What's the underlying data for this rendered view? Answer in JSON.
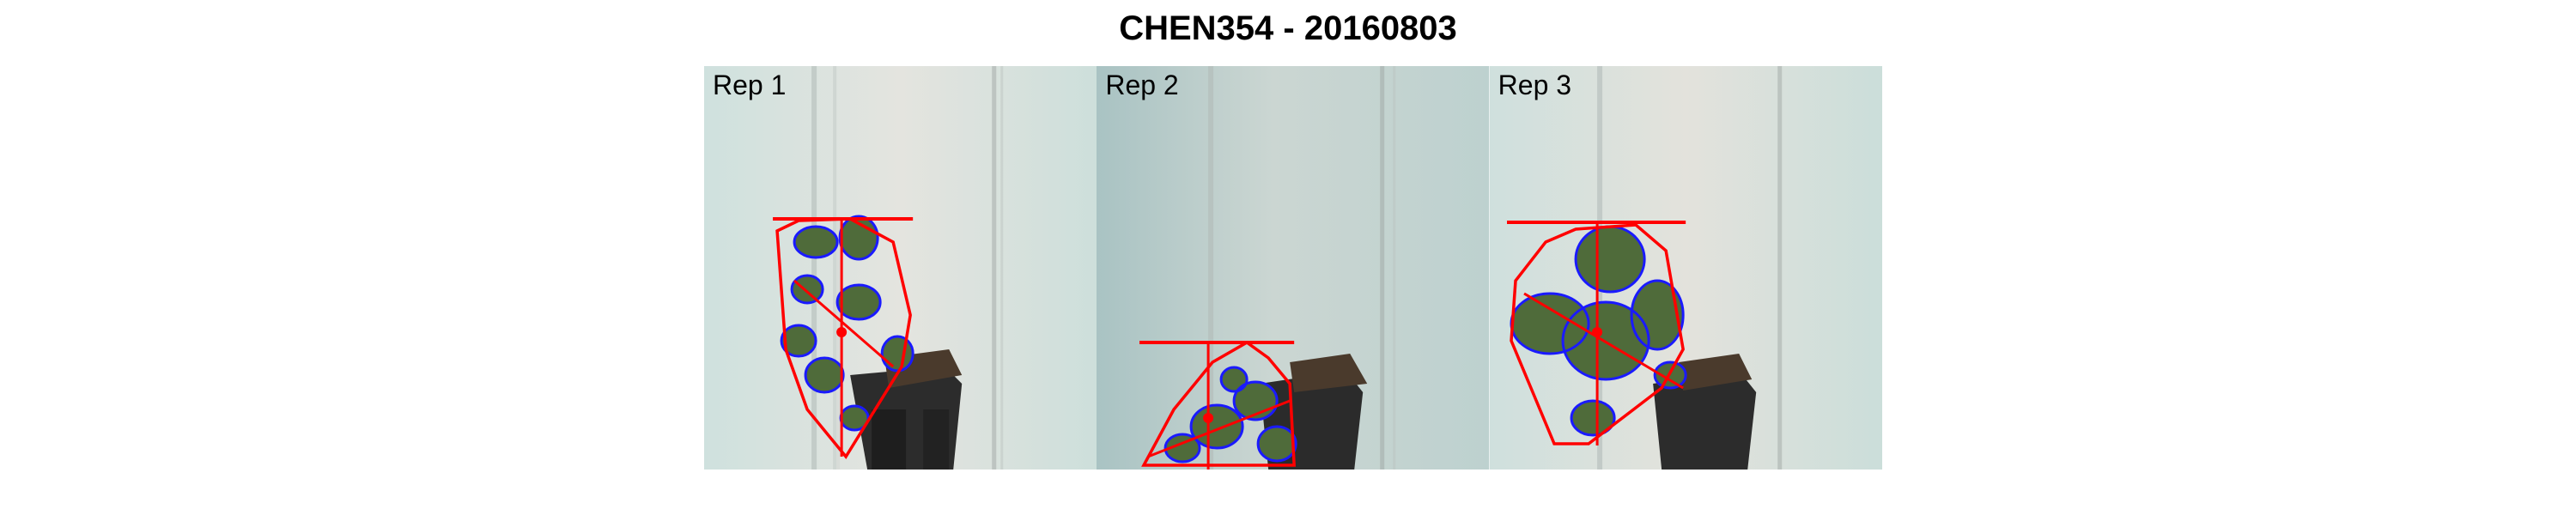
{
  "title": "CHEN354 - 20160803",
  "panels": [
    {
      "label": "Rep 1"
    },
    {
      "label": "Rep 2"
    },
    {
      "label": "Rep 3"
    }
  ],
  "colors": {
    "contour": "#1a1aff",
    "hull": "#ff0000",
    "leaf": "#4f6b3a",
    "background_1": "#d7e3df",
    "background_2": "#bcd0cf",
    "background_3": "#d3e1dd"
  }
}
